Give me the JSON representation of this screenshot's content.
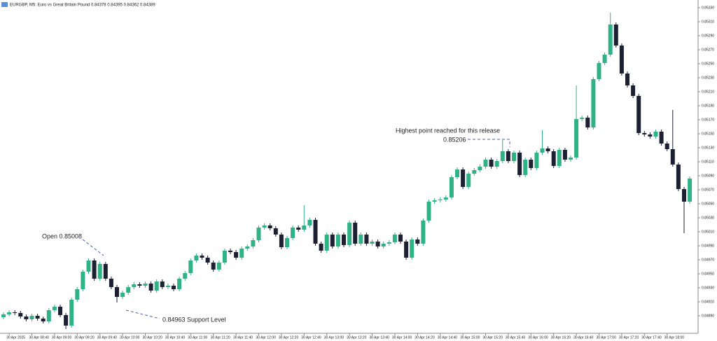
{
  "chart_data": {
    "type": "candlestick",
    "title": "EURGBP, M5:  Euro vs Great Britain Pound  0.84378 0.84395 0.84362 0.84389",
    "annotations": [
      "Open 0.85008",
      "0.84963 Support Level",
      "Highest point reached for this release",
      "0.85206"
    ],
    "up_color": "#2fb386",
    "down_color": "#1d2033",
    "ylim": [
      0.84865,
      0.85335
    ],
    "yticks": [
      {
        "value": 0.8489,
        "label": "0.84890"
      },
      {
        "value": 0.8491,
        "label": "0.84910"
      },
      {
        "value": 0.8493,
        "label": "0.84930"
      },
      {
        "value": 0.8495,
        "label": "0.84950"
      },
      {
        "value": 0.8497,
        "label": "0.84970"
      },
      {
        "value": 0.8499,
        "label": "0.84990"
      },
      {
        "value": 0.8501,
        "label": "0.85010"
      },
      {
        "value": 0.8503,
        "label": "0.85030"
      },
      {
        "value": 0.8505,
        "label": "0.85050"
      },
      {
        "value": 0.8507,
        "label": "0.85070"
      },
      {
        "value": 0.8509,
        "label": "0.85090"
      },
      {
        "value": 0.8511,
        "label": "0.85110"
      },
      {
        "value": 0.8513,
        "label": "0.85130"
      },
      {
        "value": 0.8515,
        "label": "0.85150"
      },
      {
        "value": 0.8517,
        "label": "0.85170"
      },
      {
        "value": 0.8519,
        "label": "0.85190"
      },
      {
        "value": 0.8521,
        "label": "0.85210"
      },
      {
        "value": 0.8523,
        "label": "0.85230"
      },
      {
        "value": 0.8525,
        "label": "0.85250"
      },
      {
        "value": 0.8527,
        "label": "0.85270"
      },
      {
        "value": 0.8529,
        "label": "0.85290"
      },
      {
        "value": 0.8531,
        "label": "0.85310"
      },
      {
        "value": 0.8533,
        "label": "0.85330"
      }
    ],
    "categories": [
      null,
      "30 Apr 2025",
      null,
      null,
      null,
      "30 Apr 08:40",
      null,
      null,
      null,
      "30 Apr 09:00",
      null,
      null,
      null,
      "30 Apr 09:20",
      null,
      null,
      null,
      "30 Apr 09:40",
      null,
      null,
      null,
      "30 Apr 10:00",
      null,
      null,
      null,
      "30 Apr 10:20",
      null,
      null,
      null,
      "30 Apr 10:40",
      null,
      null,
      null,
      "30 Apr 11:00",
      null,
      null,
      null,
      "30 Apr 11:20",
      null,
      null,
      null,
      "30 Apr 11:40",
      null,
      null,
      null,
      "30 Apr 12:00",
      null,
      null,
      null,
      "30 Apr 12:20",
      null,
      null,
      null,
      "30 Apr 12:40",
      null,
      null,
      null,
      "30 Apr 13:00",
      null,
      null,
      null,
      "30 Apr 13:20",
      null,
      null,
      null,
      "30 Apr 13:40",
      null,
      null,
      null,
      "30 Apr 14:00",
      null,
      null,
      null,
      "30 Apr 14:20",
      null,
      null,
      null,
      "30 Apr 14:40",
      null,
      null,
      null,
      "30 Apr 15:00",
      null,
      null,
      null,
      "30 Apr 15:20",
      null,
      null,
      null,
      "30 Apr 15:40",
      null,
      null,
      null,
      "30 Apr 16:00",
      null,
      null,
      null,
      "30 Apr 16:20",
      null,
      null,
      null,
      "30 Apr 16:40",
      null,
      null,
      null,
      "30 Apr 17:00",
      null,
      null,
      null,
      "30 Apr 17:20",
      null,
      null,
      null,
      "30 Apr 17:40",
      null,
      null,
      null,
      "30 Apr 18:00",
      null,
      null,
      null,
      null
    ],
    "open": [
      0.84888,
      0.84892,
      0.84895,
      0.84894,
      0.84889,
      0.84885,
      0.8489,
      0.84886,
      0.84882,
      0.84898,
      0.84903,
      0.84891,
      0.84876,
      0.84913,
      0.84928,
      0.84953,
      0.84969,
      0.84943,
      0.84964,
      0.84943,
      0.84931,
      0.84917,
      0.84923,
      0.84931,
      0.84935,
      0.84933,
      0.84936,
      0.84926,
      0.84939,
      0.84931,
      0.84933,
      0.84928,
      0.84943,
      0.84951,
      0.84969,
      0.84976,
      0.84973,
      0.84966,
      0.84956,
      0.84966,
      0.84983,
      0.84981,
      0.84973,
      0.84986,
      0.84989,
      0.84998,
      0.85016,
      0.85019,
      0.85015,
      0.85006,
      0.84988,
      0.85001,
      0.85016,
      0.85013,
      0.85019,
      0.85027,
      0.84993,
      0.84983,
      0.85006,
      0.84989,
      0.85006,
      0.84991,
      0.85023,
      0.84993,
      0.85006,
      0.84993,
      0.84996,
      0.84989,
      0.84993,
      0.84995,
      0.85006,
      0.84996,
      0.84973,
      0.84999,
      0.84993,
      0.85026,
      0.85053,
      0.85055,
      0.85056,
      0.85059,
      0.85088,
      0.85099,
      0.85074,
      0.85093,
      0.85098,
      0.85103,
      0.85113,
      0.85103,
      0.85111,
      0.85125,
      0.85111,
      0.85123,
      0.85091,
      0.85113,
      0.85101,
      0.85123,
      0.85129,
      0.85125,
      0.85104,
      0.85127,
      0.85113,
      0.85116,
      0.85171,
      0.85173,
      0.85159,
      0.85228,
      0.85251,
      0.85263,
      0.85306,
      0.85276,
      0.85236,
      0.85219,
      0.85204,
      0.85151,
      0.85149,
      0.85146,
      0.85153,
      0.85136,
      0.85128,
      0.85106,
      0.85071,
      0.85053
    ],
    "high": [
      0.84895,
      0.84898,
      0.84898,
      0.84897,
      0.84892,
      0.84893,
      0.84893,
      0.84889,
      0.84901,
      0.84906,
      0.84906,
      0.84894,
      0.84916,
      0.84931,
      0.84956,
      0.84972,
      0.84972,
      0.84967,
      0.84967,
      0.84946,
      0.84934,
      0.84926,
      0.84934,
      0.84938,
      0.84938,
      0.84939,
      0.84939,
      0.84942,
      0.84942,
      0.84936,
      0.84936,
      0.84946,
      0.84954,
      0.84972,
      0.84979,
      0.84979,
      0.84976,
      0.84969,
      0.84969,
      0.84986,
      0.84986,
      0.84984,
      0.84989,
      0.84992,
      0.85001,
      0.85019,
      0.85022,
      0.85022,
      0.85018,
      0.85009,
      0.85004,
      0.85019,
      0.85019,
      0.85048,
      0.8503,
      0.8503,
      0.84996,
      0.85009,
      0.85009,
      0.85009,
      0.85009,
      0.85026,
      0.85026,
      0.85009,
      0.85009,
      0.84999,
      0.84999,
      0.84996,
      0.84998,
      0.85009,
      0.85009,
      0.84999,
      0.85002,
      0.85002,
      0.85029,
      0.85056,
      0.85058,
      0.85059,
      0.85062,
      0.85091,
      0.85102,
      0.85102,
      0.85096,
      0.85101,
      0.85106,
      0.85116,
      0.85116,
      0.85114,
      0.85141,
      0.85128,
      0.85126,
      0.85126,
      0.85116,
      0.85116,
      0.85126,
      0.85155,
      0.85132,
      0.85128,
      0.8513,
      0.8513,
      0.85119,
      0.85219,
      0.85176,
      0.85176,
      0.85231,
      0.85254,
      0.85266,
      0.85323,
      0.85309,
      0.85279,
      0.85239,
      0.85222,
      0.85207,
      0.85154,
      0.85152,
      0.85156,
      0.85156,
      0.85139,
      0.85184,
      0.85109,
      0.85074,
      0.85089
    ],
    "low": [
      0.84885,
      0.84889,
      0.84891,
      0.84886,
      0.84882,
      0.84882,
      0.84883,
      0.84879,
      0.84879,
      0.84895,
      0.84888,
      0.84871,
      0.84873,
      0.8491,
      0.84925,
      0.8495,
      0.8494,
      0.8494,
      0.8494,
      0.84928,
      0.84909,
      0.84914,
      0.8492,
      0.84928,
      0.8493,
      0.8493,
      0.84923,
      0.84923,
      0.84928,
      0.84928,
      0.84925,
      0.84925,
      0.8494,
      0.84948,
      0.84966,
      0.8497,
      0.84963,
      0.84953,
      0.84953,
      0.84963,
      0.84978,
      0.8497,
      0.8497,
      0.84983,
      0.84986,
      0.84995,
      0.85013,
      0.85012,
      0.85003,
      0.84985,
      0.84985,
      0.84998,
      0.8501,
      0.8501,
      0.85016,
      0.8499,
      0.8498,
      0.8498,
      0.84986,
      0.84986,
      0.84988,
      0.84988,
      0.8499,
      0.8499,
      0.8499,
      0.8499,
      0.84986,
      0.84986,
      0.8499,
      0.84992,
      0.84993,
      0.8497,
      0.8497,
      0.8499,
      0.8499,
      0.85023,
      0.8505,
      0.85052,
      0.85053,
      0.85056,
      0.85085,
      0.85071,
      0.85071,
      0.8509,
      0.85095,
      0.851,
      0.851,
      0.851,
      0.85108,
      0.85108,
      0.85108,
      0.85088,
      0.85088,
      0.85098,
      0.85098,
      0.8512,
      0.85122,
      0.85101,
      0.85101,
      0.8511,
      0.8511,
      0.85113,
      0.85168,
      0.85156,
      0.85156,
      0.85225,
      0.85248,
      0.8526,
      0.85273,
      0.85233,
      0.85216,
      0.85201,
      0.85148,
      0.85146,
      0.85143,
      0.85143,
      0.85133,
      0.85125,
      0.85103,
      0.85068,
      0.85008,
      0.8505
    ],
    "close": [
      0.84892,
      0.84895,
      0.84894,
      0.84889,
      0.84885,
      0.8489,
      0.84886,
      0.84882,
      0.84898,
      0.84903,
      0.84891,
      0.84876,
      0.84913,
      0.84928,
      0.84953,
      0.84969,
      0.84943,
      0.84964,
      0.84943,
      0.84931,
      0.84917,
      0.84923,
      0.84931,
      0.84935,
      0.84933,
      0.84936,
      0.84926,
      0.84939,
      0.84931,
      0.84933,
      0.84928,
      0.84943,
      0.84951,
      0.84969,
      0.84976,
      0.84973,
      0.84966,
      0.84956,
      0.84966,
      0.84983,
      0.84981,
      0.84973,
      0.84986,
      0.84989,
      0.84998,
      0.85016,
      0.85019,
      0.85015,
      0.85006,
      0.84988,
      0.85001,
      0.85016,
      0.85013,
      0.85019,
      0.85027,
      0.84993,
      0.84983,
      0.85006,
      0.84989,
      0.85006,
      0.84991,
      0.85023,
      0.84993,
      0.85006,
      0.84993,
      0.84996,
      0.84989,
      0.84993,
      0.84995,
      0.85006,
      0.84996,
      0.84973,
      0.84999,
      0.84993,
      0.85026,
      0.85053,
      0.85055,
      0.85056,
      0.85059,
      0.85088,
      0.85099,
      0.85074,
      0.85093,
      0.85098,
      0.85103,
      0.85113,
      0.85103,
      0.85111,
      0.85125,
      0.85111,
      0.85123,
      0.85091,
      0.85113,
      0.85101,
      0.85123,
      0.85129,
      0.85125,
      0.85104,
      0.85127,
      0.85113,
      0.85116,
      0.85171,
      0.85173,
      0.85159,
      0.85228,
      0.85251,
      0.85263,
      0.85306,
      0.85276,
      0.85236,
      0.85219,
      0.85204,
      0.85151,
      0.85149,
      0.85146,
      0.85153,
      0.85136,
      0.85128,
      0.85106,
      0.85071,
      0.85053,
      0.85086
    ]
  }
}
